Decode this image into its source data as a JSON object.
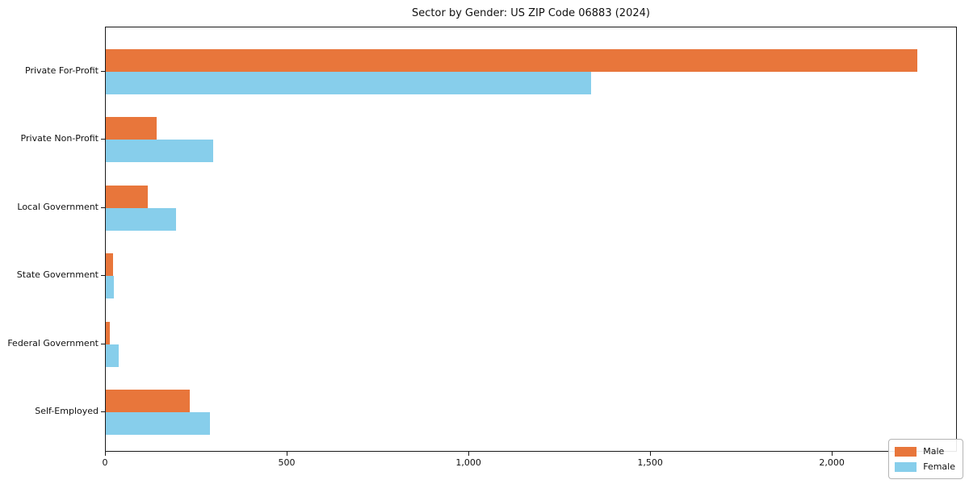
{
  "chart_data": {
    "type": "bar",
    "orientation": "horizontal",
    "title": "Sector by Gender: US ZIP Code 06883 (2024)",
    "categories": [
      "Private For-Profit",
      "Private Non-Profit",
      "Local Government",
      "State Government",
      "Federal Government",
      "Self-Employed"
    ],
    "series": [
      {
        "name": "Male",
        "color": "#e8763b",
        "values": [
          2233,
          139,
          115,
          19,
          12,
          231
        ]
      },
      {
        "name": "Female",
        "color": "#87ceeb",
        "values": [
          1336,
          296,
          193,
          23,
          35,
          287
        ]
      }
    ],
    "xlabel": "",
    "ylabel": "",
    "x_ticks": [
      0,
      500,
      1000,
      1500,
      2000
    ],
    "x_tick_labels": [
      "0",
      "500",
      "1,000",
      "1,500",
      "2,000"
    ],
    "xlim": [
      0,
      2344
    ],
    "grid": false,
    "legend": {
      "position": "lower right",
      "entries": [
        "Male",
        "Female"
      ]
    },
    "colors": {
      "axis": "#1a1a1a",
      "background": "#ffffff",
      "text": "#111111"
    }
  }
}
